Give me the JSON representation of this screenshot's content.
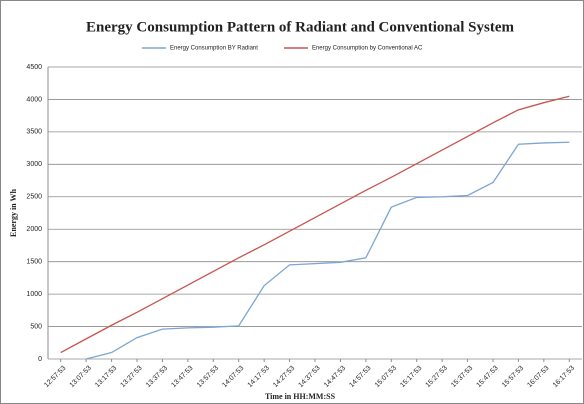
{
  "chart_data": {
    "type": "line",
    "title": "Energy Consumption Pattern of Radiant and Conventional System",
    "x_label": "Time in HH:MM:SS",
    "y_label": "Energy in Wh",
    "categories": [
      "12:57:53",
      "13:07:53",
      "13:17:53",
      "13:27:53",
      "13:37:53",
      "13:47:53",
      "13:57:53",
      "14:07:53",
      "14:17:53",
      "14:27:53",
      "14:37:53",
      "14:47:53",
      "14:57:53",
      "15:07:53",
      "15:17:53",
      "15:27:53",
      "15:37:53",
      "15:47:53",
      "15:57:53",
      "16:07:53",
      "16:17:53"
    ],
    "series": [
      {
        "name": "Energy Consumption BY Radiant",
        "color": "#7ea6d0",
        "values": [
          null,
          0,
          100,
          330,
          460,
          480,
          490,
          510,
          1130,
          1450,
          1470,
          1490,
          1560,
          2340,
          2490,
          2500,
          2520,
          2720,
          3310,
          3330,
          3340
        ]
      },
      {
        "name": "Energy Consumption by Conventional AC",
        "color": "#c9544f",
        "values": [
          100,
          310,
          520,
          720,
          930,
          1140,
          1350,
          1560,
          1760,
          1970,
          2180,
          2390,
          2600,
          2800,
          3010,
          3220,
          3430,
          3640,
          3840,
          3950,
          4050
        ]
      }
    ],
    "ylim": [
      0,
      4500
    ],
    "yticks": [
      0,
      500,
      1000,
      1500,
      2000,
      2500,
      3000,
      3500,
      4000,
      4500
    ],
    "grid": true,
    "legend": "top"
  }
}
